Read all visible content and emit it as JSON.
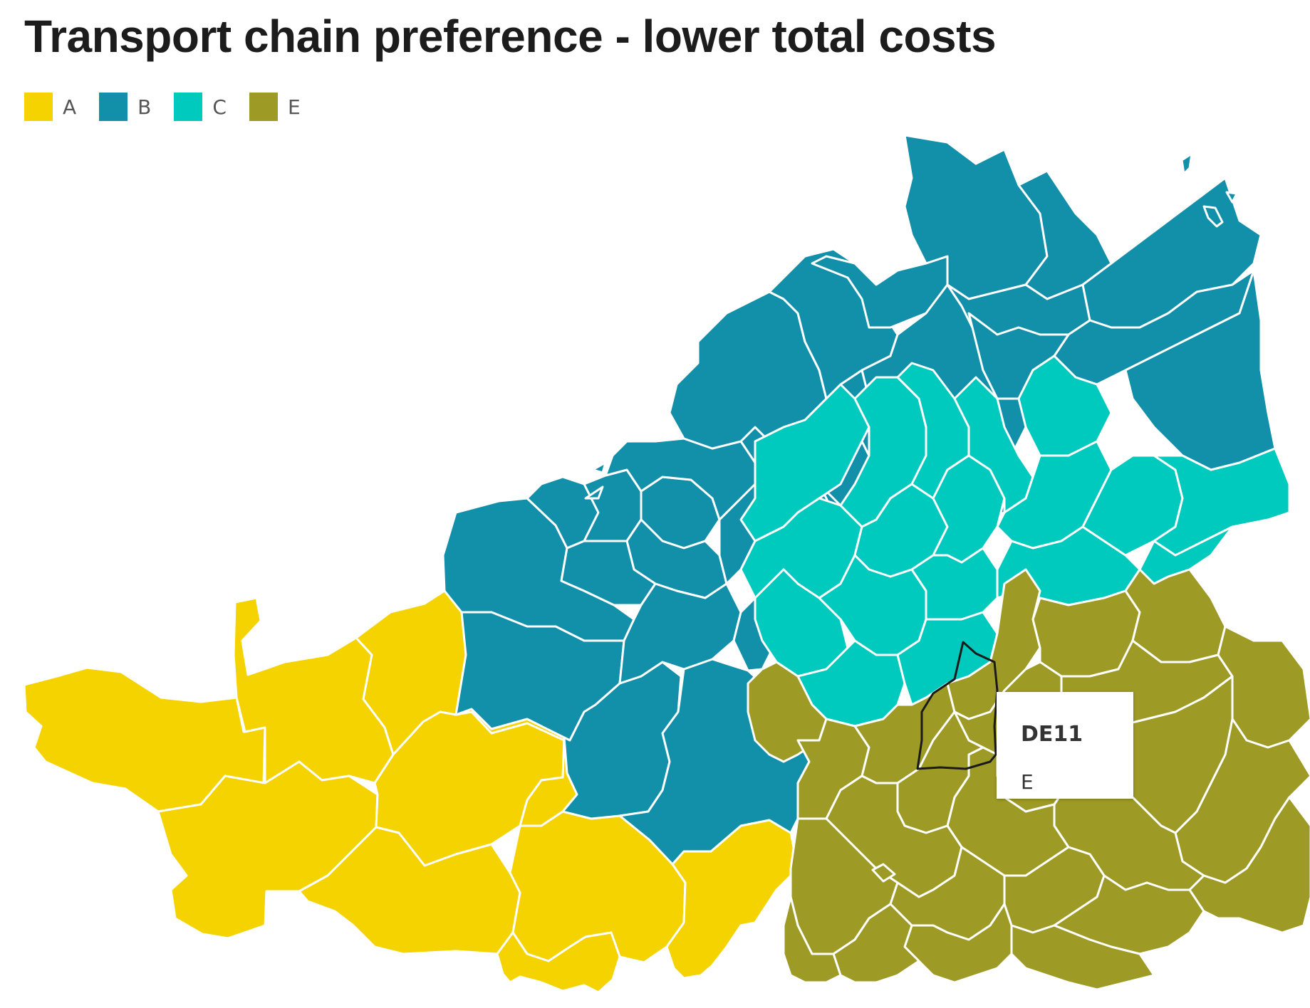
{
  "title": "Transport chain preference - lower total costs",
  "legend": [
    {
      "label": "A",
      "color": "#f5d300"
    },
    {
      "label": "B",
      "color": "#128fa9"
    },
    {
      "label": "C",
      "color": "#00c9bd"
    },
    {
      "label": "E",
      "color": "#9d9a25"
    }
  ],
  "tooltip": {
    "region": "DE11",
    "value": "E"
  }
}
